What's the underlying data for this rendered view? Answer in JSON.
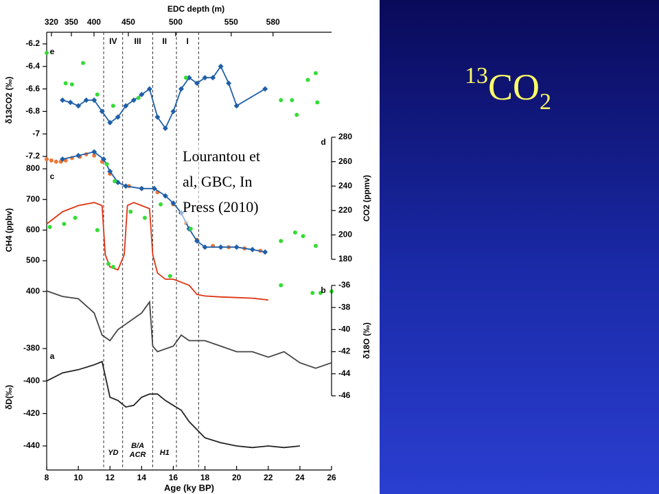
{
  "chart_data": {
    "type": "line",
    "xlabel": "Age (ky BP)",
    "xlim": [
      8,
      26
    ],
    "xticks": [
      8,
      10,
      12,
      14,
      16,
      18,
      20,
      22,
      24,
      26
    ],
    "x2label": "EDC depth (m)",
    "x2ticks": [
      320,
      350,
      400,
      450,
      500,
      550,
      580
    ],
    "x2ticks_age": [
      8.3,
      9.56,
      10.99,
      13.16,
      16.15,
      19.66,
      22.3
    ],
    "boundaries": [
      11.6,
      12.8,
      14.7,
      16.2,
      17.6
    ],
    "phases": [
      "IV",
      "III",
      "II",
      "I"
    ],
    "events": [
      [
        "YD"
      ],
      [
        "B/A",
        "ACR"
      ],
      [
        "H1"
      ]
    ],
    "annotation": [
      "Lourantou et",
      "al, GBC, In",
      "Press (2010)"
    ],
    "slide_title": [
      "13",
      "CO",
      "2"
    ],
    "panels": [
      {
        "letter": "e",
        "side": "left",
        "ylabel": "δ13CO2 (‰)",
        "ylim": [
          -7.25,
          -6.15
        ],
        "yticks": [
          -6.2,
          -6.4,
          -6.6,
          -6.8,
          -7,
          -7.2
        ],
        "series": [
          {
            "color": "#1f5fa8",
            "marker": "diamond",
            "line": true,
            "x": [
              9.0,
              9.5,
              10,
              10.5,
              11,
              11.5,
              12,
              12.5,
              13,
              13.5,
              14,
              14.5,
              15,
              15.5,
              16,
              16.5,
              17,
              17.5,
              18,
              18.5,
              19,
              19.5,
              20,
              21.8
            ],
            "values": [
              -6.7,
              -6.72,
              -6.75,
              -6.7,
              -6.7,
              -6.8,
              -6.9,
              -6.85,
              -6.75,
              -6.7,
              -6.65,
              -6.6,
              -6.85,
              -6.95,
              -6.8,
              -6.6,
              -6.5,
              -6.55,
              -6.5,
              -6.5,
              -6.4,
              -6.55,
              -6.75,
              -6.6
            ]
          },
          {
            "color": "#33dd33",
            "marker": "circle",
            "line": false,
            "x": [
              8,
              9.2,
              9.6,
              10.3,
              11.2,
              12.2,
              13.8,
              16.8,
              22.8,
              23.5,
              23.8,
              24.5,
              25,
              25.1
            ],
            "values": [
              -6.28,
              -6.55,
              -6.56,
              -6.37,
              -6.65,
              -6.75,
              -6.68,
              -6.5,
              -6.7,
              -6.7,
              -6.83,
              -6.52,
              -6.46,
              -6.72
            ]
          }
        ]
      },
      {
        "letter": "d",
        "side": "right",
        "ylabel": "CO2 (ppmv)",
        "ylim": [
          175,
          285
        ],
        "yticks": [
          280,
          260,
          240,
          220,
          200,
          180
        ],
        "series": [
          {
            "color": "#ee7733",
            "marker": "circle",
            "line": false,
            "x": [
              8,
              8.3,
              8.6,
              8.9,
              9.2,
              9.6,
              10.1,
              10.5,
              11,
              11.5,
              12,
              12.5,
              13.2,
              14,
              15,
              16,
              16.8,
              17.5,
              18.5,
              19.5,
              20.5,
              21.5
            ],
            "values": [
              262,
              261,
              260,
              260,
              261,
              263,
              264,
              266,
              265,
              260,
              250,
              243,
              240,
              238,
              235,
              225,
              210,
              196,
              191,
              190,
              189,
              187
            ]
          },
          {
            "color": "#1f5fa8",
            "marker": "diamond",
            "line": true,
            "x": [
              9,
              10,
              11,
              11.6,
              12,
              12.5,
              13,
              14,
              14.8,
              15.5,
              16,
              16.5,
              17,
              17.5,
              18,
              19,
              20,
              21,
              21.8
            ],
            "values": [
              262,
              265,
              268,
              262,
              252,
              243,
              240,
              238,
              238,
              232,
              226,
              218,
              205,
              195,
              190,
              190,
              190,
              188,
              186
            ]
          },
          {
            "color": "#33dd33",
            "marker": "circle",
            "line": false,
            "x": [
              11.8,
              12.3,
              15.2,
              17.1,
              22.8,
              23.7,
              24.2,
              25
            ],
            "values": [
              258,
              244,
              225,
              205,
              195,
              202,
              199,
              191
            ]
          }
        ]
      },
      {
        "letter": "c",
        "side": "left",
        "ylabel": "CH4 (ppbv)",
        "ylim": [
          330,
          830
        ],
        "yticks": [
          800,
          700,
          600,
          500,
          400
        ],
        "series": [
          {
            "color": "#dd3311",
            "marker": "none",
            "line": true,
            "x": [
              8,
              9,
              10,
              11,
              11.5,
              11.7,
              12,
              12.5,
              12.9,
              13.1,
              13.5,
              14,
              14.5,
              14.7,
              15,
              15.5,
              16,
              16.5,
              17,
              17.5,
              18,
              19,
              20,
              21,
              22
            ],
            "values": [
              620,
              660,
              680,
              690,
              680,
              520,
              480,
              470,
              520,
              680,
              690,
              680,
              670,
              520,
              460,
              440,
              440,
              430,
              420,
              390,
              385,
              382,
              380,
              378,
              372
            ]
          },
          {
            "color": "#33dd33",
            "marker": "circle",
            "line": false,
            "x": [
              8.2,
              9.1,
              9.8,
              11.2,
              11.9,
              12.2,
              13.3,
              14.2,
              15.8,
              22.8,
              24.8,
              25.3,
              26
            ],
            "values": [
              610,
              620,
              640,
              600,
              490,
              480,
              660,
              640,
              450,
              420,
              395,
              395,
              400
            ]
          }
        ]
      },
      {
        "letter": "b",
        "side": "right",
        "ylabel": "δ18O (‰)",
        "ylim": [
          -46.5,
          -35
        ],
        "yticks": [
          -36,
          -38,
          -40,
          -42,
          -44,
          -46
        ],
        "series": [
          {
            "color": "#444444",
            "marker": "none",
            "line": true,
            "x": [
              8,
              9,
              10,
              11,
              11.5,
              12,
              12.5,
              13,
              13.5,
              14,
              14.5,
              14.7,
              15,
              16,
              16.5,
              17,
              18,
              19,
              20,
              21,
              22,
              23,
              24,
              25,
              26
            ],
            "values": [
              -36.5,
              -37,
              -37.2,
              -38.5,
              -40.5,
              -41,
              -40,
              -39.5,
              -39,
              -38.5,
              -37.5,
              -41.5,
              -42,
              -41.5,
              -40.5,
              -41,
              -41,
              -41.5,
              -42,
              -42,
              -42.5,
              -42,
              -43,
              -43.5,
              -43
            ]
          }
        ]
      },
      {
        "letter": "a",
        "side": "left",
        "ylabel": "δD(‰)",
        "ylim": [
          -445,
          -375
        ],
        "yticks": [
          -380,
          -400,
          -420,
          -440
        ],
        "series": [
          {
            "color": "#222222",
            "marker": "none",
            "line": true,
            "x": [
              8,
              9,
              10,
              11,
              11.5,
              12,
              12.5,
              13,
              13.5,
              14,
              14.5,
              15,
              15.5,
              16,
              16.5,
              17,
              17.5,
              18,
              19,
              20,
              21,
              22,
              23,
              24
            ],
            "values": [
              -400,
              -395,
              -393,
              -390,
              -388,
              -410,
              -412,
              -416,
              -415,
              -410,
              -408,
              -408,
              -412,
              -415,
              -418,
              -425,
              -430,
              -435,
              -438,
              -440,
              -441,
              -440,
              -441,
              -440
            ]
          }
        ]
      }
    ]
  }
}
